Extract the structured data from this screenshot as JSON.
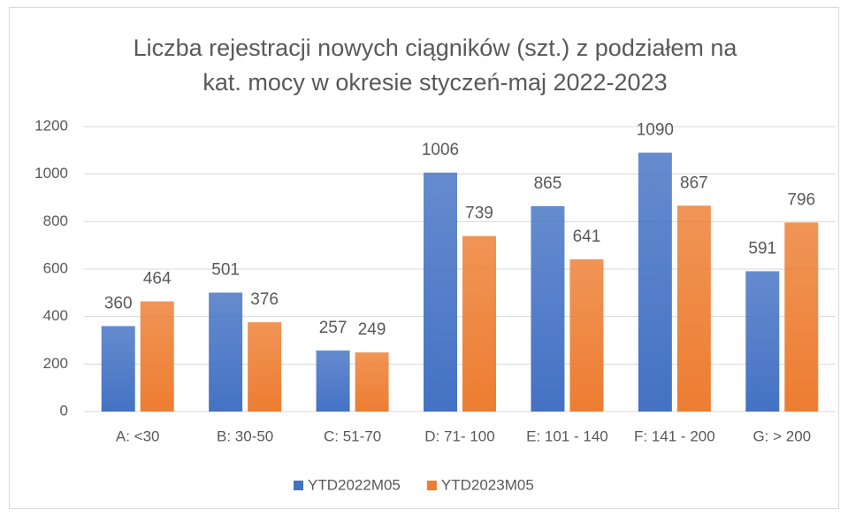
{
  "chart_data": {
    "type": "bar",
    "title": [
      "Liczba rejestracji nowych ciągników (szt.) z podziałem na",
      "kat. mocy w okresie styczeń-maj 2022-2023"
    ],
    "categories": [
      "A: <30",
      "B: 30-50",
      "C: 51-70",
      "D: 71- 100",
      "E: 101 - 140",
      "F: 141 - 200",
      "G: > 200"
    ],
    "series": [
      {
        "name": "YTD2022M05",
        "color": "#4472c4",
        "values": [
          360,
          501,
          257,
          1006,
          865,
          1090,
          591
        ]
      },
      {
        "name": "YTD2023M05",
        "color": "#ed7d31",
        "values": [
          464,
          376,
          249,
          739,
          641,
          867,
          796
        ]
      }
    ],
    "ylim": [
      0,
      1200
    ],
    "yticks": [
      0,
      200,
      400,
      600,
      800,
      1000,
      1200
    ],
    "grid": true,
    "legend": "bottom"
  }
}
